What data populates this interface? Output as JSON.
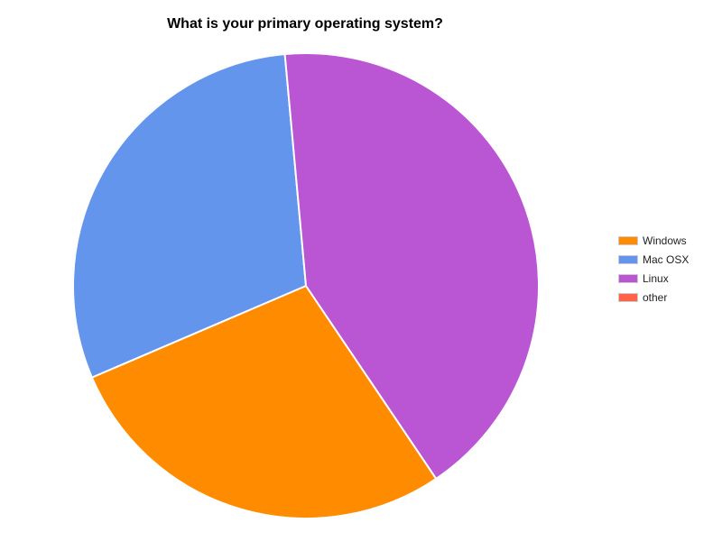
{
  "chart_data": {
    "type": "pie",
    "title": "What is your primary operating system?",
    "categories": [
      "Windows",
      "Mac OSX",
      "Linux",
      "other"
    ],
    "values": [
      28,
      30,
      42,
      0
    ],
    "colors": [
      "#ff8c00",
      "#6495ed",
      "#ba55d3",
      "#ff6347"
    ],
    "legend_position": "right"
  }
}
